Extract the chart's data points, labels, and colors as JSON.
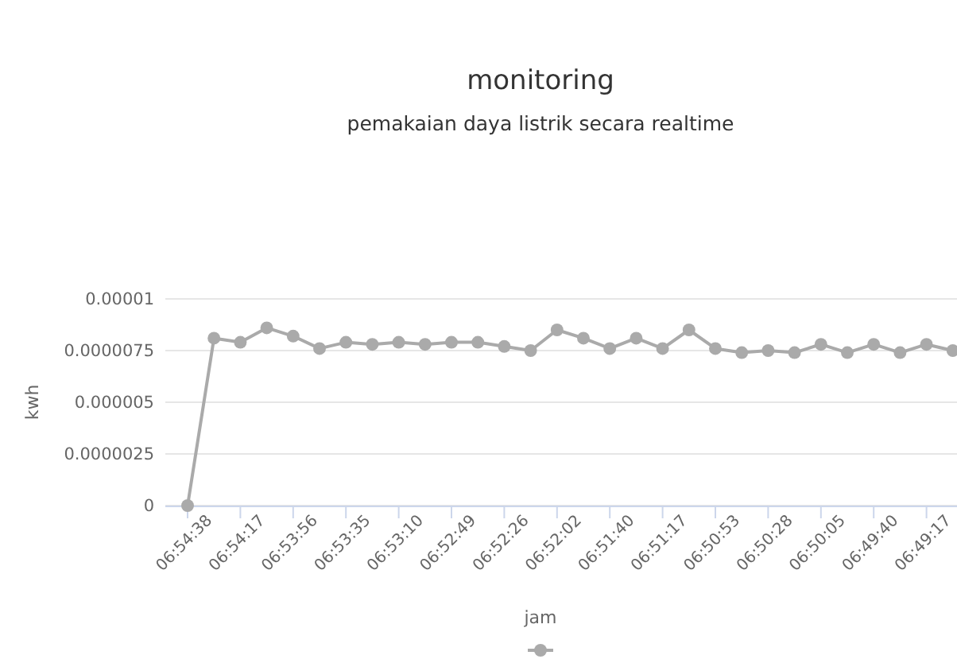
{
  "chart_data": {
    "type": "line",
    "title": "monitoring",
    "subtitle": "pemakaian daya listrik secara realtime",
    "xlabel": "jam",
    "ylabel": "kwh",
    "categories": [
      "06:54:38",
      null,
      "06:54:17",
      null,
      "06:53:56",
      null,
      "06:53:35",
      null,
      "06:53:10",
      null,
      "06:52:49",
      null,
      "06:52:26",
      null,
      "06:52:02",
      null,
      "06:51:40",
      null,
      "06:51:17",
      null,
      "06:50:53",
      null,
      "06:50:28",
      null,
      "06:50:05",
      null,
      "06:49:40",
      null,
      "06:49:17",
      null
    ],
    "series": [
      {
        "color": "#aaaaaa",
        "values": [
          0,
          8.1e-06,
          7.9e-06,
          8.6e-06,
          8.2e-06,
          7.6e-06,
          7.9e-06,
          7.8e-06,
          7.9e-06,
          7.8e-06,
          7.9e-06,
          7.9e-06,
          7.7e-06,
          7.5e-06,
          8.5e-06,
          8.1e-06,
          7.6e-06,
          8.1e-06,
          7.6e-06,
          8.5e-06,
          7.6e-06,
          7.4e-06,
          7.5e-06,
          7.4e-06,
          7.8e-06,
          7.4e-06,
          7.8e-06,
          7.4e-06,
          7.8e-06,
          7.5e-06
        ]
      }
    ],
    "ylim": [
      0,
      1e-05
    ],
    "yticks": [
      0,
      {
        "value": 2.5e-06,
        "label": "0.0000025"
      },
      {
        "value": 5e-06,
        "label": "0.000005"
      },
      {
        "value": 7.5e-06,
        "label": "0.0000075"
      },
      {
        "value": 1e-05,
        "label": "0.00001"
      }
    ],
    "grid": "y",
    "marker": "circle",
    "line_style": "solid"
  }
}
